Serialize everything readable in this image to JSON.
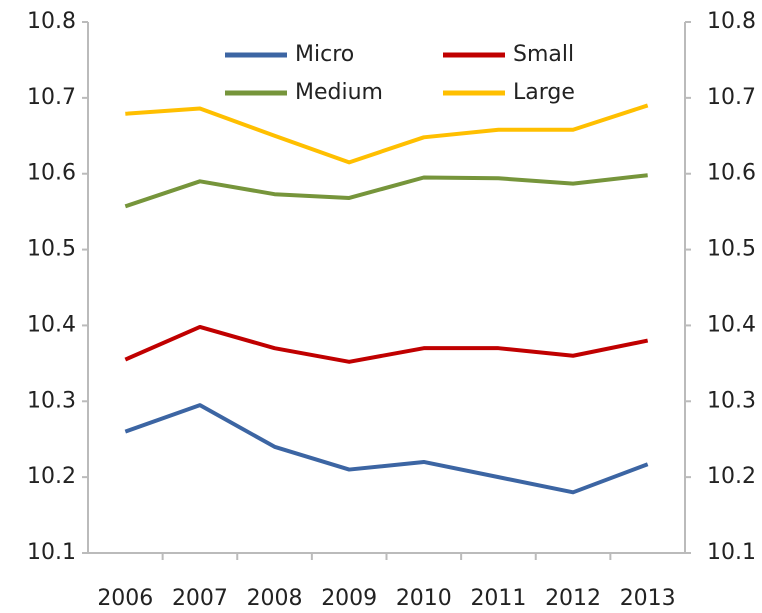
{
  "chart_data": {
    "type": "line",
    "categories": [
      "2006",
      "2007",
      "2008",
      "2009",
      "2010",
      "2011",
      "2012",
      "2013"
    ],
    "series": [
      {
        "name": "Micro",
        "color": "#3c65a3",
        "values": [
          10.26,
          10.295,
          10.24,
          10.21,
          10.22,
          10.2,
          10.18,
          10.217
        ]
      },
      {
        "name": "Small",
        "color": "#c00000",
        "values": [
          10.355,
          10.398,
          10.37,
          10.352,
          10.37,
          10.37,
          10.36,
          10.38
        ]
      },
      {
        "name": "Medium",
        "color": "#76953b",
        "values": [
          10.557,
          10.59,
          10.573,
          10.568,
          10.595,
          10.594,
          10.587,
          10.598
        ]
      },
      {
        "name": "Large",
        "color": "#ffbf00",
        "values": [
          10.679,
          10.686,
          10.65,
          10.615,
          10.648,
          10.658,
          10.658,
          10.69
        ]
      }
    ],
    "ylim": [
      10.1,
      10.8
    ],
    "yticks": [
      10.1,
      10.2,
      10.3,
      10.4,
      10.5,
      10.6,
      10.7,
      10.8
    ],
    "y2lim": [
      10.1,
      10.8
    ],
    "y2ticks": [
      10.1,
      10.2,
      10.3,
      10.4,
      10.5,
      10.6,
      10.7,
      10.8
    ],
    "grid": false,
    "legend": "top"
  }
}
